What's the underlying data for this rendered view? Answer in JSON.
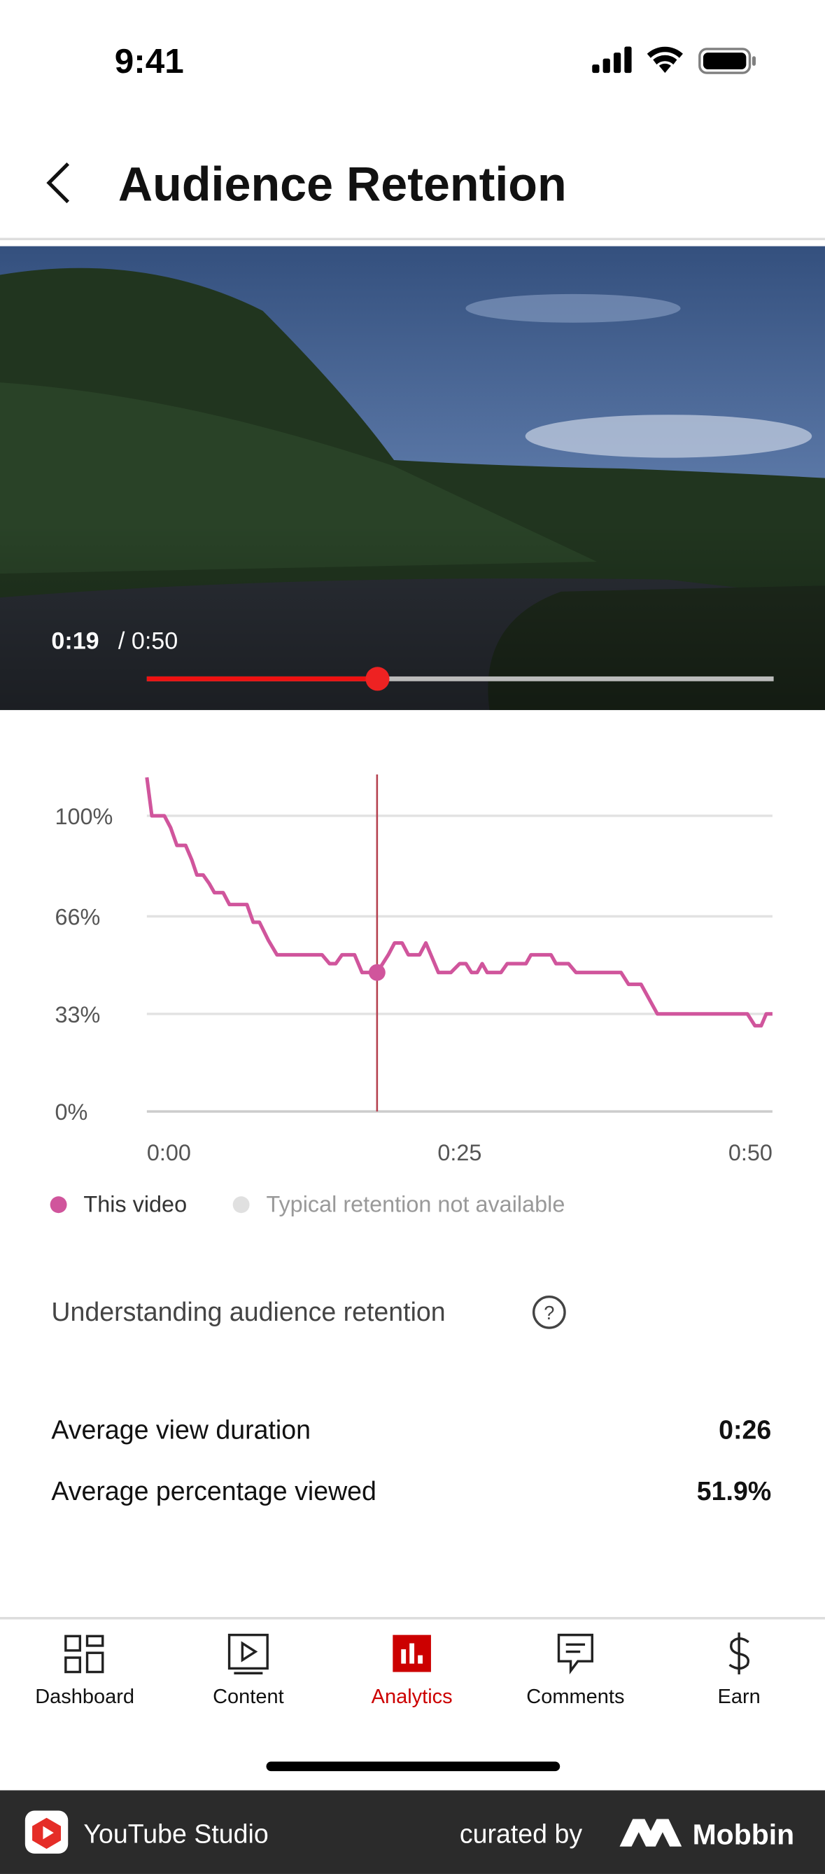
{
  "status": {
    "time": "9:41"
  },
  "header": {
    "title": "Audience Retention"
  },
  "video": {
    "current_time": "0:19",
    "duration": "/ 0:50"
  },
  "chart_data": {
    "type": "line",
    "x": [
      0,
      0.4,
      1.4,
      1.9,
      2.4,
      3.1,
      3.6,
      4.0,
      4.5,
      5,
      5.4,
      6.1,
      6.6,
      8,
      8.5,
      9,
      9.7,
      10.4,
      14,
      14.6,
      15.1,
      15.6,
      16.6,
      17.2,
      18.4,
      19.3,
      19.8,
      20.4,
      20.9,
      21.8,
      22.3,
      23.3,
      24.3,
      25,
      25.5,
      25.95,
      26.4,
      26.8,
      27.2,
      28.3,
      28.8,
      30.3,
      30.7,
      32.3,
      32.7,
      33.7,
      34.3,
      37.9,
      38.5,
      39.5,
      40.8,
      48,
      48.6,
      49.1,
      49.5,
      50
    ],
    "series": [
      {
        "name": "This video",
        "color": "#d0559c",
        "values": [
          113,
          100,
          100,
          96,
          90,
          90,
          85,
          80,
          80,
          77,
          74,
          74,
          70,
          70,
          64,
          64,
          58,
          53,
          53,
          50,
          50,
          53,
          53,
          47,
          47,
          53,
          57,
          57,
          53,
          53,
          57,
          47,
          47,
          50,
          50,
          47,
          47,
          50,
          47,
          47,
          50,
          50,
          53,
          53,
          50,
          50,
          47,
          47,
          43,
          43,
          33,
          33,
          29,
          29,
          33,
          33
        ]
      }
    ],
    "cursor": {
      "x": 18.4,
      "y": 47
    },
    "xlim": [
      0,
      50
    ],
    "ylim": [
      0,
      114
    ],
    "xticks": [
      {
        "value": 0,
        "label": "0:00"
      },
      {
        "value": 25,
        "label": "0:25"
      },
      {
        "value": 50,
        "label": "0:50"
      }
    ],
    "yticks": [
      {
        "value": 0,
        "label": "0%"
      },
      {
        "value": 33,
        "label": "33%"
      },
      {
        "value": 66,
        "label": "66%"
      },
      {
        "value": 100,
        "label": "100%"
      }
    ],
    "grid": true,
    "legend_note": "Typical retention not available"
  },
  "help": {
    "label": "Understanding audience retention"
  },
  "stats": [
    {
      "label": "Average view duration",
      "value": "0:26"
    },
    {
      "label": "Average percentage viewed",
      "value": "51.9%"
    }
  ],
  "nav": [
    {
      "label": "Dashboard"
    },
    {
      "label": "Content"
    },
    {
      "label": "Analytics"
    },
    {
      "label": "Comments"
    },
    {
      "label": "Earn"
    }
  ],
  "footer": {
    "app": "YouTube Studio",
    "curated": "curated by",
    "brand": "Mobbin"
  }
}
